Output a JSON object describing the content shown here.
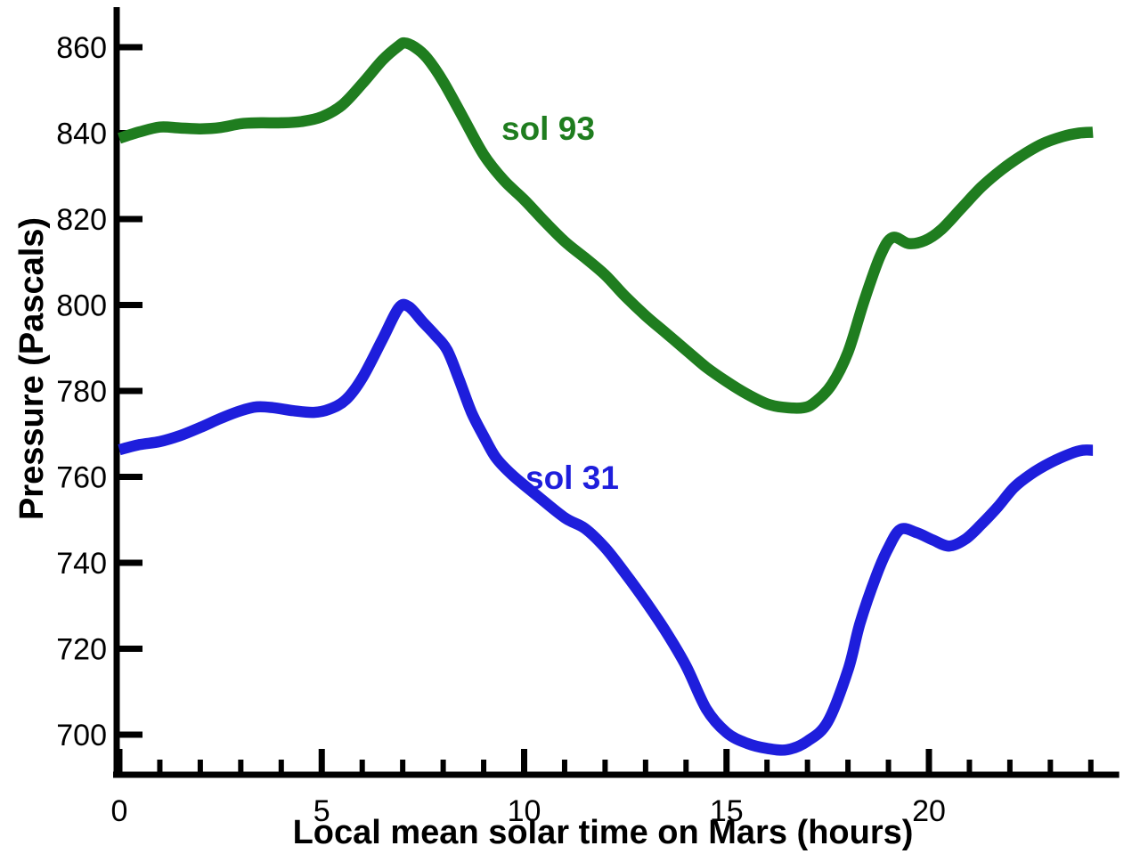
{
  "page": {
    "background_color": "#ffffff",
    "text_color": "#000000"
  },
  "chart_data": {
    "type": "line",
    "title": "",
    "xlabel": "Local mean solar time on Mars (hours)",
    "ylabel": "Pressure (Pascals)",
    "xlim": [
      0,
      24.7
    ],
    "ylim": [
      692,
      868
    ],
    "x_major_ticks": [
      0,
      5,
      10,
      15,
      20
    ],
    "x_minor_tick_step": 1,
    "x_minor_tick_max": 24,
    "y_ticks": [
      700,
      720,
      740,
      760,
      780,
      800,
      820,
      840,
      860
    ],
    "grid": false,
    "legend_position": "inline-curve-labels",
    "axis_color": "#000000",
    "series": [
      {
        "name": "sol 93",
        "color": "#1f7d1f",
        "points": [
          [
            0,
            838.8
          ],
          [
            0.5,
            840.3
          ],
          [
            1,
            841.4
          ],
          [
            1.5,
            841.2
          ],
          [
            2,
            841.0
          ],
          [
            2.5,
            841.3
          ],
          [
            3,
            842.2
          ],
          [
            3.5,
            842.4
          ],
          [
            4,
            842.4
          ],
          [
            4.5,
            842.7
          ],
          [
            5,
            843.8
          ],
          [
            5.5,
            846.5
          ],
          [
            6,
            851.5
          ],
          [
            6.5,
            857.0
          ],
          [
            6.9,
            860.3
          ],
          [
            7.05,
            861.0
          ],
          [
            7.3,
            860.0
          ],
          [
            7.6,
            857.5
          ],
          [
            8,
            852.0
          ],
          [
            8.5,
            843.5
          ],
          [
            9,
            835.0
          ],
          [
            9.5,
            829.0
          ],
          [
            10,
            824.5
          ],
          [
            10.5,
            819.5
          ],
          [
            11,
            814.8
          ],
          [
            11.5,
            811.0
          ],
          [
            12,
            807.0
          ],
          [
            12.5,
            802.0
          ],
          [
            13,
            797.5
          ],
          [
            13.5,
            793.5
          ],
          [
            14,
            789.5
          ],
          [
            14.5,
            785.5
          ],
          [
            15,
            782.2
          ],
          [
            15.5,
            779.3
          ],
          [
            16,
            777.0
          ],
          [
            16.4,
            776.2
          ],
          [
            16.9,
            776.1
          ],
          [
            17.2,
            777.5
          ],
          [
            17.6,
            781.5
          ],
          [
            18,
            789.0
          ],
          [
            18.4,
            801.0
          ],
          [
            18.8,
            811.5
          ],
          [
            19.1,
            815.7
          ],
          [
            19.5,
            814.3
          ],
          [
            19.9,
            815.0
          ],
          [
            20.3,
            817.5
          ],
          [
            20.8,
            822.5
          ],
          [
            21.3,
            827.5
          ],
          [
            21.8,
            831.5
          ],
          [
            22.3,
            834.8
          ],
          [
            22.8,
            837.5
          ],
          [
            23.3,
            839.2
          ],
          [
            23.7,
            840.0
          ],
          [
            24.05,
            840.2
          ]
        ]
      },
      {
        "name": "sol 31",
        "color": "#1e1edc",
        "points": [
          [
            0,
            766.3
          ],
          [
            0.5,
            767.5
          ],
          [
            1,
            768.2
          ],
          [
            1.5,
            769.6
          ],
          [
            2,
            771.5
          ],
          [
            2.5,
            773.6
          ],
          [
            3,
            775.4
          ],
          [
            3.4,
            776.3
          ],
          [
            3.8,
            776.1
          ],
          [
            4.3,
            775.4
          ],
          [
            4.8,
            775.0
          ],
          [
            5.2,
            775.8
          ],
          [
            5.6,
            778.0
          ],
          [
            6,
            783.0
          ],
          [
            6.5,
            792.0
          ],
          [
            6.9,
            799.3
          ],
          [
            7.15,
            799.6
          ],
          [
            7.5,
            796.0
          ],
          [
            7.8,
            793.0
          ],
          [
            8.1,
            789.5
          ],
          [
            8.4,
            782.5
          ],
          [
            8.7,
            775.0
          ],
          [
            9,
            769.5
          ],
          [
            9.3,
            764.5
          ],
          [
            9.7,
            760.5
          ],
          [
            10.3,
            755.8
          ],
          [
            11,
            750.5
          ],
          [
            11.5,
            748.0
          ],
          [
            12,
            743.5
          ],
          [
            12.5,
            737.5
          ],
          [
            13,
            731.0
          ],
          [
            13.5,
            724.0
          ],
          [
            14,
            716.0
          ],
          [
            14.5,
            706.0
          ],
          [
            15,
            700.5
          ],
          [
            15.5,
            698.0
          ],
          [
            16,
            696.8
          ],
          [
            16.5,
            696.5
          ],
          [
            17,
            698.5
          ],
          [
            17.5,
            703.0
          ],
          [
            18,
            715.0
          ],
          [
            18.3,
            726.0
          ],
          [
            18.7,
            737.0
          ],
          [
            19,
            743.5
          ],
          [
            19.3,
            747.8
          ],
          [
            19.7,
            747.0
          ],
          [
            20.1,
            745.3
          ],
          [
            20.5,
            743.9
          ],
          [
            20.9,
            745.5
          ],
          [
            21.3,
            749.0
          ],
          [
            21.7,
            753.0
          ],
          [
            22.1,
            757.5
          ],
          [
            22.5,
            760.5
          ],
          [
            23,
            763.3
          ],
          [
            23.5,
            765.4
          ],
          [
            23.8,
            766.2
          ],
          [
            24.05,
            766.2
          ]
        ]
      }
    ]
  }
}
